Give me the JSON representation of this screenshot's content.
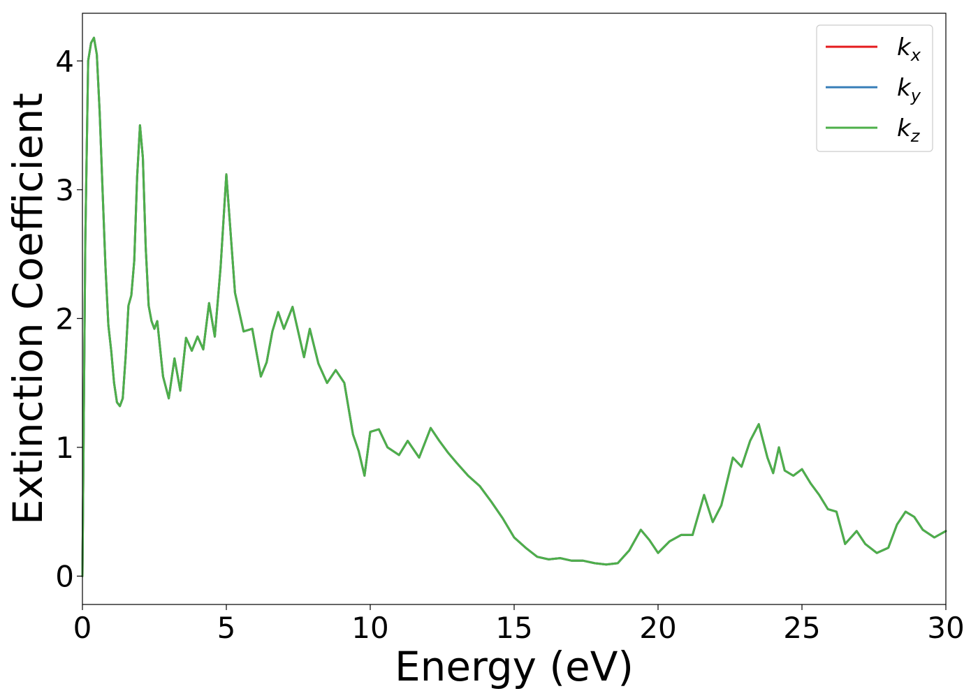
{
  "chart_data": {
    "type": "line",
    "title": "",
    "xlabel": "Energy (eV)",
    "ylabel": "Extinction Coefficient",
    "xlim": [
      0,
      30
    ],
    "ylim": [
      -0.22,
      4.37
    ],
    "xticks": [
      0,
      5,
      10,
      15,
      20,
      25,
      30
    ],
    "yticks": [
      0,
      1,
      2,
      3,
      4
    ],
    "grid": false,
    "legend_position": "top-right",
    "series": [
      {
        "name": "k",
        "subscript": "x",
        "color": "#e41a1c",
        "x": [
          0,
          0.1,
          0.2,
          0.3,
          0.4,
          0.5,
          0.6,
          0.7,
          0.8,
          0.9,
          1.0,
          1.1,
          1.2,
          1.3,
          1.4,
          1.5,
          1.6,
          1.7,
          1.8,
          1.9,
          2.0,
          2.1,
          2.2,
          2.3,
          2.4,
          2.5,
          2.6,
          2.8,
          3.0,
          3.2,
          3.4,
          3.6,
          3.8,
          4.0,
          4.2,
          4.4,
          4.6,
          4.8,
          5.0,
          5.3,
          5.6,
          5.9,
          6.2,
          6.4,
          6.6,
          6.8,
          7.0,
          7.3,
          7.7,
          7.9,
          8.2,
          8.5,
          8.8,
          9.1,
          9.4,
          9.6,
          9.8,
          10.0,
          10.3,
          10.6,
          11.0,
          11.3,
          11.7,
          12.1,
          12.4,
          12.7,
          13.0,
          13.4,
          13.8,
          14.2,
          14.6,
          15.0,
          15.4,
          15.8,
          16.2,
          16.6,
          17.0,
          17.4,
          17.8,
          18.2,
          18.6,
          19.0,
          19.4,
          19.7,
          20.0,
          20.4,
          20.8,
          21.2,
          21.6,
          21.9,
          22.2,
          22.6,
          22.9,
          23.2,
          23.5,
          23.8,
          24.0,
          24.2,
          24.4,
          24.7,
          25.0,
          25.3,
          25.6,
          25.9,
          26.2,
          26.5,
          26.9,
          27.2,
          27.6,
          28.0,
          28.3,
          28.6,
          28.9,
          29.2,
          29.6,
          30.0
        ],
        "y": [
          0.0,
          2.6,
          4.0,
          4.14,
          4.18,
          4.05,
          3.6,
          3.0,
          2.4,
          1.95,
          1.75,
          1.5,
          1.35,
          1.32,
          1.38,
          1.7,
          2.1,
          2.18,
          2.45,
          3.1,
          3.5,
          3.25,
          2.55,
          2.1,
          1.98,
          1.92,
          1.98,
          1.55,
          1.38,
          1.69,
          1.44,
          1.85,
          1.75,
          1.86,
          1.76,
          2.12,
          1.86,
          2.4,
          3.12,
          2.2,
          1.9,
          1.92,
          1.55,
          1.66,
          1.9,
          2.05,
          1.92,
          2.09,
          1.7,
          1.92,
          1.65,
          1.5,
          1.6,
          1.5,
          1.1,
          0.97,
          0.78,
          1.12,
          1.14,
          1.0,
          0.94,
          1.05,
          0.92,
          1.15,
          1.05,
          0.96,
          0.88,
          0.78,
          0.7,
          0.58,
          0.45,
          0.3,
          0.22,
          0.15,
          0.13,
          0.14,
          0.12,
          0.12,
          0.1,
          0.09,
          0.1,
          0.2,
          0.36,
          0.28,
          0.18,
          0.27,
          0.32,
          0.32,
          0.63,
          0.42,
          0.55,
          0.92,
          0.85,
          1.05,
          1.18,
          0.92,
          0.8,
          1.0,
          0.82,
          0.78,
          0.83,
          0.72,
          0.63,
          0.52,
          0.5,
          0.25,
          0.35,
          0.25,
          0.18,
          0.22,
          0.4,
          0.5,
          0.46,
          0.36,
          0.3,
          0.35
        ]
      },
      {
        "name": "k",
        "subscript": "y",
        "color": "#377eb8",
        "x": [
          0,
          0.1,
          0.2,
          0.3,
          0.4,
          0.5,
          0.6,
          0.7,
          0.8,
          0.9,
          1.0,
          1.1,
          1.2,
          1.3,
          1.4,
          1.5,
          1.6,
          1.7,
          1.8,
          1.9,
          2.0,
          2.1,
          2.2,
          2.3,
          2.4,
          2.5,
          2.6,
          2.8,
          3.0,
          3.2,
          3.4,
          3.6,
          3.8,
          4.0,
          4.2,
          4.4,
          4.6,
          4.8,
          5.0,
          5.3,
          5.6,
          5.9,
          6.2,
          6.4,
          6.6,
          6.8,
          7.0,
          7.3,
          7.7,
          7.9,
          8.2,
          8.5,
          8.8,
          9.1,
          9.4,
          9.6,
          9.8,
          10.0,
          10.3,
          10.6,
          11.0,
          11.3,
          11.7,
          12.1,
          12.4,
          12.7,
          13.0,
          13.4,
          13.8,
          14.2,
          14.6,
          15.0,
          15.4,
          15.8,
          16.2,
          16.6,
          17.0,
          17.4,
          17.8,
          18.2,
          18.6,
          19.0,
          19.4,
          19.7,
          20.0,
          20.4,
          20.8,
          21.2,
          21.6,
          21.9,
          22.2,
          22.6,
          22.9,
          23.2,
          23.5,
          23.8,
          24.0,
          24.2,
          24.4,
          24.7,
          25.0,
          25.3,
          25.6,
          25.9,
          26.2,
          26.5,
          26.9,
          27.2,
          27.6,
          28.0,
          28.3,
          28.6,
          28.9,
          29.2,
          29.6,
          30.0
        ],
        "y": [
          0.0,
          2.6,
          4.0,
          4.14,
          4.18,
          4.05,
          3.6,
          3.0,
          2.4,
          1.95,
          1.75,
          1.5,
          1.35,
          1.32,
          1.38,
          1.7,
          2.1,
          2.18,
          2.45,
          3.1,
          3.5,
          3.25,
          2.55,
          2.1,
          1.98,
          1.92,
          1.98,
          1.55,
          1.38,
          1.69,
          1.44,
          1.85,
          1.75,
          1.86,
          1.76,
          2.12,
          1.86,
          2.4,
          3.12,
          2.2,
          1.9,
          1.92,
          1.55,
          1.66,
          1.9,
          2.05,
          1.92,
          2.09,
          1.7,
          1.92,
          1.65,
          1.5,
          1.6,
          1.5,
          1.1,
          0.97,
          0.78,
          1.12,
          1.14,
          1.0,
          0.94,
          1.05,
          0.92,
          1.15,
          1.05,
          0.96,
          0.88,
          0.78,
          0.7,
          0.58,
          0.45,
          0.3,
          0.22,
          0.15,
          0.13,
          0.14,
          0.12,
          0.12,
          0.1,
          0.09,
          0.1,
          0.2,
          0.36,
          0.28,
          0.18,
          0.27,
          0.32,
          0.32,
          0.63,
          0.42,
          0.55,
          0.92,
          0.85,
          1.05,
          1.18,
          0.92,
          0.8,
          1.0,
          0.82,
          0.78,
          0.83,
          0.72,
          0.63,
          0.52,
          0.5,
          0.25,
          0.35,
          0.25,
          0.18,
          0.22,
          0.4,
          0.5,
          0.46,
          0.36,
          0.3,
          0.35
        ]
      },
      {
        "name": "k",
        "subscript": "z",
        "color": "#4daf4a",
        "x": [
          0,
          0.1,
          0.2,
          0.3,
          0.4,
          0.5,
          0.6,
          0.7,
          0.8,
          0.9,
          1.0,
          1.1,
          1.2,
          1.3,
          1.4,
          1.5,
          1.6,
          1.7,
          1.8,
          1.9,
          2.0,
          2.1,
          2.2,
          2.3,
          2.4,
          2.5,
          2.6,
          2.8,
          3.0,
          3.2,
          3.4,
          3.6,
          3.8,
          4.0,
          4.2,
          4.4,
          4.6,
          4.8,
          5.0,
          5.3,
          5.6,
          5.9,
          6.2,
          6.4,
          6.6,
          6.8,
          7.0,
          7.3,
          7.7,
          7.9,
          8.2,
          8.5,
          8.8,
          9.1,
          9.4,
          9.6,
          9.8,
          10.0,
          10.3,
          10.6,
          11.0,
          11.3,
          11.7,
          12.1,
          12.4,
          12.7,
          13.0,
          13.4,
          13.8,
          14.2,
          14.6,
          15.0,
          15.4,
          15.8,
          16.2,
          16.6,
          17.0,
          17.4,
          17.8,
          18.2,
          18.6,
          19.0,
          19.4,
          19.7,
          20.0,
          20.4,
          20.8,
          21.2,
          21.6,
          21.9,
          22.2,
          22.6,
          22.9,
          23.2,
          23.5,
          23.8,
          24.0,
          24.2,
          24.4,
          24.7,
          25.0,
          25.3,
          25.6,
          25.9,
          26.2,
          26.5,
          26.9,
          27.2,
          27.6,
          28.0,
          28.3,
          28.6,
          28.9,
          29.2,
          29.6,
          30.0
        ],
        "y": [
          0.0,
          2.6,
          4.0,
          4.14,
          4.18,
          4.05,
          3.6,
          3.0,
          2.4,
          1.95,
          1.75,
          1.5,
          1.35,
          1.32,
          1.38,
          1.7,
          2.1,
          2.18,
          2.45,
          3.1,
          3.5,
          3.25,
          2.55,
          2.1,
          1.98,
          1.92,
          1.98,
          1.55,
          1.38,
          1.69,
          1.44,
          1.85,
          1.75,
          1.86,
          1.76,
          2.12,
          1.86,
          2.4,
          3.12,
          2.2,
          1.9,
          1.92,
          1.55,
          1.66,
          1.9,
          2.05,
          1.92,
          2.09,
          1.7,
          1.92,
          1.65,
          1.5,
          1.6,
          1.5,
          1.1,
          0.97,
          0.78,
          1.12,
          1.14,
          1.0,
          0.94,
          1.05,
          0.92,
          1.15,
          1.05,
          0.96,
          0.88,
          0.78,
          0.7,
          0.58,
          0.45,
          0.3,
          0.22,
          0.15,
          0.13,
          0.14,
          0.12,
          0.12,
          0.1,
          0.09,
          0.1,
          0.2,
          0.36,
          0.28,
          0.18,
          0.27,
          0.32,
          0.32,
          0.63,
          0.42,
          0.55,
          0.92,
          0.85,
          1.05,
          1.18,
          0.92,
          0.8,
          1.0,
          0.82,
          0.78,
          0.83,
          0.72,
          0.63,
          0.52,
          0.5,
          0.25,
          0.35,
          0.25,
          0.18,
          0.22,
          0.4,
          0.5,
          0.46,
          0.36,
          0.3,
          0.35
        ]
      }
    ]
  }
}
